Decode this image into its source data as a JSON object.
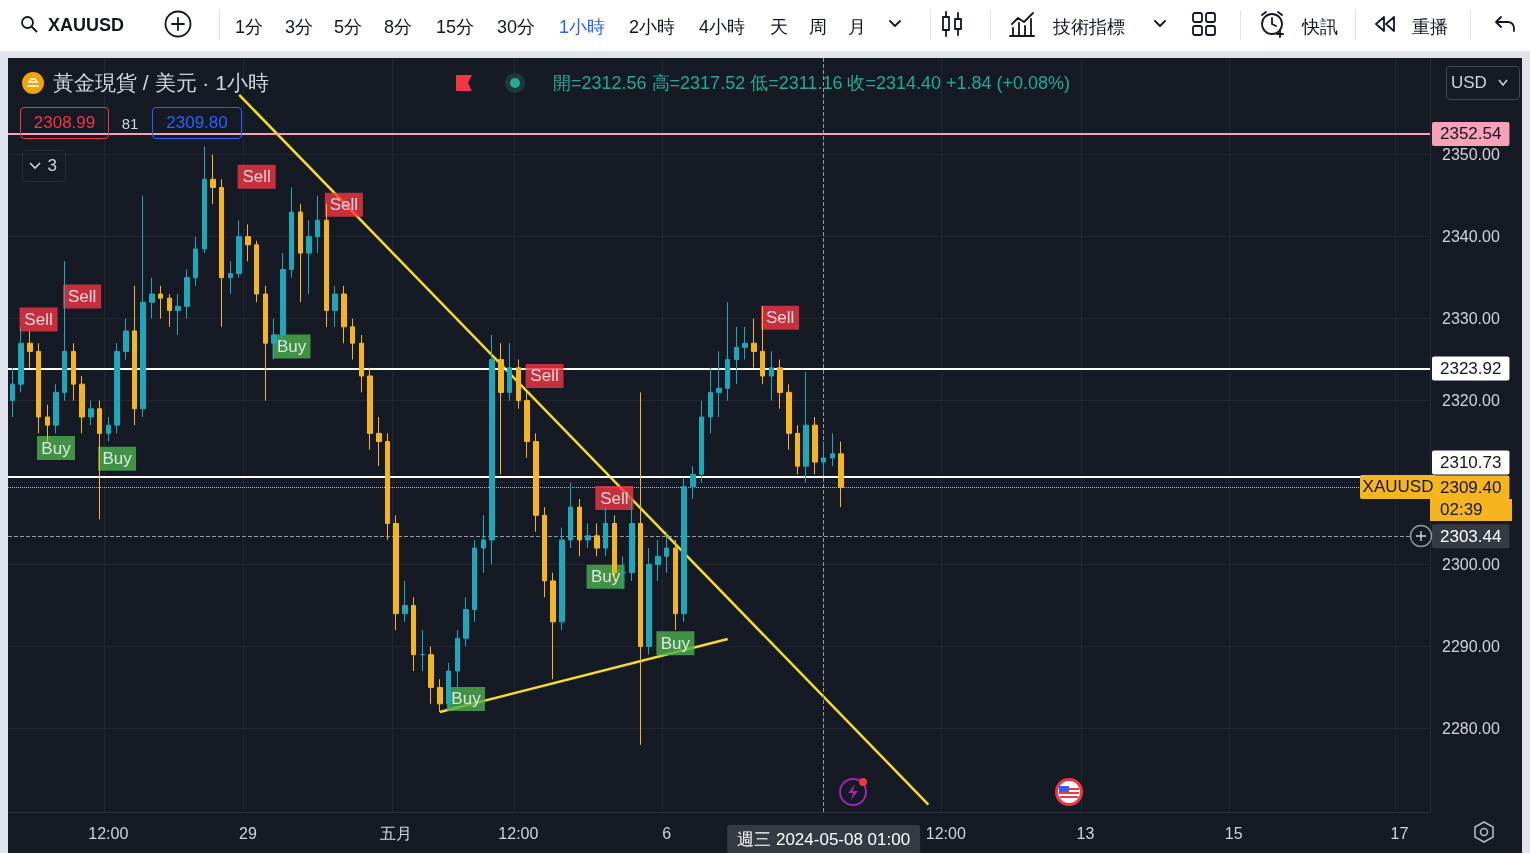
{
  "chart_data": {
    "type": "candlestick",
    "title": "黃金現貨 / 美元 · 1小時",
    "subtitle": "開=2312.56 高=2317.52 低=2311.16 收=2314.40 +1.84 (+0.08%)",
    "categories": [
      null,
      null,
      null,
      null,
      null,
      null,
      null,
      null,
      null,
      null,
      null,
      "12:00",
      null,
      null,
      null,
      null,
      null,
      null,
      null,
      null,
      null,
      null,
      null,
      null,
      null,
      null,
      null,
      "29",
      null,
      null,
      null,
      null,
      null,
      null,
      null,
      null,
      null,
      null,
      null,
      null,
      null,
      null,
      null,
      null,
      "五月",
      null,
      null,
      null,
      null,
      null,
      null,
      null,
      null,
      null,
      null,
      null,
      null,
      null,
      "12:00",
      null,
      null,
      null,
      null,
      null,
      null,
      null,
      null,
      null,
      null,
      null,
      null,
      null,
      null,
      null,
      null,
      "6",
      null,
      null,
      null,
      null,
      null,
      null,
      null,
      null,
      null,
      null,
      null,
      null,
      null,
      null,
      null,
      null,
      null,
      "週三 2024-05-08 01:00",
      null,
      null,
      null,
      null,
      null,
      null,
      null,
      null,
      null,
      null,
      null,
      null,
      null,
      "12:00",
      null,
      null,
      null,
      null,
      null,
      null,
      null,
      null,
      null,
      null,
      null,
      null,
      null,
      null,
      null,
      "13",
      null,
      null,
      null,
      null,
      null,
      null,
      null,
      null,
      null,
      null,
      null,
      null,
      null,
      null,
      null,
      null,
      "15",
      null,
      null,
      null,
      null,
      null,
      null,
      null,
      null,
      null,
      null,
      null,
      null,
      null,
      null,
      null,
      null,
      null,
      null,
      "17",
      null,
      null,
      null
    ],
    "ohlc": [
      [
        2320,
        2324,
        2318,
        2322
      ],
      [
        2322,
        2329,
        2321,
        2327
      ],
      [
        2327,
        2328.5,
        2324,
        2326
      ],
      [
        2326,
        2327,
        2316,
        2318
      ],
      [
        2318,
        2319.5,
        2315,
        2317
      ],
      [
        2317,
        2322,
        2316,
        2321
      ],
      [
        2321,
        2337,
        2320,
        2326
      ],
      [
        2326,
        2327,
        2320,
        2322
      ],
      [
        2322,
        2323,
        2316,
        2318
      ],
      [
        2318,
        2320,
        2317,
        2319
      ],
      [
        2319,
        2320,
        2305.5,
        2316
      ],
      [
        2316,
        2318,
        2315,
        2317
      ],
      [
        2317,
        2327,
        2316,
        2326
      ],
      [
        2326,
        2330,
        2325,
        2328.5
      ],
      [
        2328.5,
        2334,
        2317,
        2319
      ],
      [
        2319,
        2345,
        2318,
        2332
      ],
      [
        2332,
        2335,
        2330,
        2333
      ],
      [
        2333,
        2334,
        2330,
        2332.5
      ],
      [
        2332.5,
        2333,
        2329,
        2331
      ],
      [
        2331,
        2333,
        2328,
        2331.5
      ],
      [
        2331.5,
        2336,
        2330,
        2335
      ],
      [
        2335,
        2340,
        2334,
        2338.5
      ],
      [
        2338.5,
        2351,
        2338,
        2347
      ],
      [
        2347,
        2350,
        2344,
        2346
      ],
      [
        2346,
        2347,
        2329,
        2335
      ],
      [
        2335,
        2337,
        2333,
        2335.5
      ],
      [
        2335.5,
        2342,
        2335,
        2340
      ],
      [
        2340,
        2341.5,
        2337,
        2339
      ],
      [
        2339,
        2339.5,
        2332,
        2333
      ],
      [
        2333,
        2334,
        2320,
        2327
      ],
      [
        2327,
        2330,
        2325,
        2328
      ],
      [
        2328,
        2338,
        2327,
        2336
      ],
      [
        2336,
        2346,
        2335,
        2343
      ],
      [
        2343,
        2344,
        2332,
        2338
      ],
      [
        2338,
        2342,
        2333,
        2340
      ],
      [
        2340,
        2345,
        2338,
        2342
      ],
      [
        2342,
        2344,
        2329,
        2331
      ],
      [
        2331,
        2334,
        2329,
        2333
      ],
      [
        2333,
        2334,
        2327,
        2329
      ],
      [
        2329,
        2330,
        2325,
        2327
      ],
      [
        2327,
        2328,
        2321,
        2323
      ],
      [
        2323,
        2324,
        2314,
        2316
      ],
      [
        2316,
        2318,
        2312,
        2315
      ],
      [
        2315,
        2316,
        2303,
        2305
      ],
      [
        2305,
        2306,
        2292,
        2294
      ],
      [
        2294,
        2298,
        2293,
        2295
      ],
      [
        2295,
        2296,
        2287,
        2289
      ],
      [
        2289,
        2292,
        2287,
        2289
      ],
      [
        2289,
        2290,
        2283,
        2285
      ],
      [
        2285,
        2286,
        2282,
        2283
      ],
      [
        2283,
        2288,
        2282.5,
        2287
      ],
      [
        2287,
        2292,
        2285,
        2291
      ],
      [
        2291,
        2296,
        2290,
        2294.5
      ],
      [
        2294.5,
        2303,
        2293,
        2302
      ],
      [
        2302,
        2306,
        2299,
        2303
      ],
      [
        2303,
        2328,
        2300,
        2325
      ],
      [
        2325,
        2327,
        2311,
        2321
      ],
      [
        2321,
        2327,
        2320,
        2324
      ],
      [
        2324,
        2325,
        2319,
        2320
      ],
      [
        2320,
        2321,
        2313,
        2315
      ],
      [
        2315,
        2316,
        2304,
        2306
      ],
      [
        2306,
        2307,
        2296,
        2298
      ],
      [
        2298,
        2299,
        2286,
        2293
      ],
      [
        2293,
        2304.5,
        2292,
        2303
      ],
      [
        2303,
        2310,
        2302,
        2307
      ],
      [
        2307,
        2308,
        2301,
        2303
      ],
      [
        2303,
        2305,
        2302,
        2303.5
      ],
      [
        2303.5,
        2305,
        2301,
        2302
      ],
      [
        2302,
        2307,
        2301,
        2305
      ],
      [
        2305,
        2306,
        2298,
        2299
      ],
      [
        2299,
        2301,
        2297,
        2299
      ],
      [
        2299,
        2308,
        2298,
        2305
      ],
      [
        2305,
        2321,
        2278,
        2290
      ],
      [
        2290,
        2302,
        2289,
        2300
      ],
      [
        2300,
        2303,
        2298,
        2301
      ],
      [
        2301,
        2304,
        2299,
        2302
      ],
      [
        2302,
        2303,
        2292,
        2294
      ],
      [
        2294,
        2310.5,
        2293,
        2309.5
      ],
      [
        2309.5,
        2312,
        2308,
        2311
      ],
      [
        2311,
        2320,
        2310,
        2318
      ],
      [
        2318,
        2324,
        2316,
        2321
      ],
      [
        2321,
        2326,
        2318,
        2321.5
      ],
      [
        2321.5,
        2332,
        2320,
        2325
      ],
      [
        2325,
        2329,
        2322,
        2326.5
      ],
      [
        2326.5,
        2329,
        2325,
        2327
      ],
      [
        2327,
        2330,
        2324,
        2326
      ],
      [
        2326,
        2331.5,
        2322,
        2323
      ],
      [
        2323,
        2326,
        2320,
        2324
      ],
      [
        2324,
        2325,
        2319,
        2321
      ],
      [
        2321,
        2322,
        2314,
        2316
      ],
      [
        2316,
        2317,
        2311,
        2312
      ],
      [
        2312,
        2323.5,
        2310,
        2317
      ],
      [
        2317,
        2318,
        2311,
        2312.5
      ],
      [
        2312.5,
        2315,
        2311,
        2313
      ],
      [
        2313,
        2316,
        2312,
        2313.5
      ],
      [
        2313.5,
        2315,
        2307,
        2309.4
      ],
      null,
      null,
      null,
      null,
      null,
      null,
      null,
      null,
      null,
      null,
      null,
      null,
      null,
      null,
      null,
      null,
      null,
      null,
      null,
      null,
      null,
      null,
      null,
      null,
      null,
      null,
      null,
      null,
      null,
      null,
      null,
      null,
      null,
      null,
      null,
      null,
      null,
      null,
      null,
      null,
      null,
      null,
      null,
      null,
      null,
      null,
      null,
      null,
      null,
      null,
      null,
      null,
      null,
      null,
      null,
      null,
      null,
      null,
      null,
      null,
      null,
      null,
      null,
      null,
      null,
      null,
      null
    ],
    "colors": [
      "#1ea7b8",
      "#1ea7b8",
      "#f5b51f",
      "#f5b51f",
      "#f5b51f",
      "#1ea7b8",
      "#1ea7b8",
      "#f5b51f",
      "#f5b51f",
      "#1ea7b8",
      "#f5b51f",
      "#1ea7b8",
      "#1ea7b8",
      "#1ea7b8",
      "#f5b51f",
      "#1ea7b8",
      "#1ea7b8",
      "#f5b51f",
      "#f5b51f",
      "#1ea7b8",
      "#1ea7b8",
      "#1ea7b8",
      "#1ea7b8",
      "#f5b51f",
      "#f5b51f",
      "#1ea7b8",
      "#1ea7b8",
      "#f5b51f",
      "#f5b51f",
      "#f5b51f",
      "#1ea7b8",
      "#1ea7b8",
      "#1ea7b8",
      "#f5b51f",
      "#1ea7b8",
      "#1ea7b8",
      "#f5b51f",
      "#1ea7b8",
      "#f5b51f",
      "#f5b51f",
      "#f5b51f",
      "#f5b51f",
      "#f5b51f",
      "#f5b51f",
      "#f5b51f",
      "#1ea7b8",
      "#f5b51f",
      "#1ea7b8",
      "#f5b51f",
      "#f5b51f",
      "#1ea7b8",
      "#1ea7b8",
      "#1ea7b8",
      "#1ea7b8",
      "#1ea7b8",
      "#1ea7b8",
      "#f5b51f",
      "#1ea7b8",
      "#f5b51f",
      "#f5b51f",
      "#f5b51f",
      "#f5b51f",
      "#f5b51f",
      "#1ea7b8",
      "#1ea7b8",
      "#f5b51f",
      "#1ea7b8",
      "#f5b51f",
      "#1ea7b8",
      "#f5b51f",
      "#1ea7b8",
      "#1ea7b8",
      "#f5b51f",
      "#1ea7b8",
      "#1ea7b8",
      "#1ea7b8",
      "#f5b51f",
      "#1ea7b8",
      "#1ea7b8",
      "#1ea7b8",
      "#1ea7b8",
      "#1ea7b8",
      "#1ea7b8",
      "#1ea7b8",
      "#1ea7b8",
      "#f5b51f",
      "#f5b51f",
      "#1ea7b8",
      "#f5b51f",
      "#f5b51f",
      "#f5b51f",
      "#1ea7b8",
      "#f5b51f",
      "#1ea7b8",
      "#1ea7b8",
      "#f5b51f",
      null,
      null,
      null,
      null,
      null,
      null,
      null,
      null,
      null,
      null,
      null,
      null,
      null,
      null,
      null,
      null,
      null,
      null,
      null,
      null,
      null,
      null,
      null,
      null,
      null,
      null,
      null,
      null,
      null,
      null,
      null,
      null,
      null,
      null,
      null,
      null,
      null,
      null,
      null,
      null,
      null,
      null,
      null,
      null,
      null,
      null,
      null,
      null,
      null,
      null,
      null,
      null,
      null,
      null,
      null,
      null,
      null,
      null,
      null,
      null,
      null,
      null,
      null,
      null,
      null,
      null,
      null
    ],
    "series": [
      {
        "type": "line",
        "color": "#f2dd2c",
        "values": [
          null,
          null,
          null,
          null,
          null,
          null,
          null,
          null,
          null,
          null,
          null,
          null,
          null,
          null,
          null,
          null,
          null,
          null,
          null,
          null,
          null,
          null,
          null,
          null,
          null,
          null,
          2357.3,
          null,
          null,
          null,
          null,
          null,
          null,
          null,
          null,
          null,
          null,
          null,
          null,
          null,
          null,
          null,
          null,
          null,
          null,
          null,
          null,
          null,
          null,
          null,
          null,
          null,
          null,
          null,
          null,
          null,
          null,
          null,
          null,
          null,
          null,
          null,
          null,
          null,
          null,
          null,
          null,
          null,
          null,
          null,
          null,
          null,
          null,
          null,
          null,
          null,
          null,
          null,
          null,
          null,
          null,
          null,
          null,
          null,
          null,
          null,
          null,
          null,
          null,
          null,
          null,
          null,
          null,
          null,
          null,
          null,
          null,
          null,
          null,
          null,
          null,
          null,
          null,
          null,
          null,
          2270.7,
          null,
          null,
          null,
          null,
          null,
          null,
          null,
          null,
          null,
          null,
          null,
          null,
          null,
          null,
          null,
          null,
          null,
          null,
          null,
          null,
          null,
          null,
          null,
          null,
          null,
          null,
          null,
          null,
          null,
          null,
          null,
          null,
          null,
          null,
          null,
          null,
          null,
          null,
          null,
          null,
          null,
          null,
          null,
          null,
          null,
          null,
          null,
          null,
          null,
          null,
          null,
          null,
          null,
          null,
          null,
          null,
          null
        ]
      },
      {
        "type": "line",
        "color": "#f2dd2c",
        "values": [
          null,
          null,
          null,
          null,
          null,
          null,
          null,
          null,
          null,
          null,
          null,
          null,
          null,
          null,
          null,
          null,
          null,
          null,
          null,
          null,
          null,
          null,
          null,
          null,
          null,
          null,
          null,
          null,
          null,
          null,
          null,
          null,
          null,
          null,
          null,
          null,
          null,
          null,
          null,
          null,
          null,
          null,
          null,
          null,
          null,
          null,
          null,
          null,
          null,
          2282,
          null,
          null,
          null,
          null,
          null,
          null,
          null,
          null,
          null,
          null,
          null,
          null,
          null,
          null,
          null,
          null,
          null,
          null,
          null,
          null,
          null,
          null,
          null,
          null,
          null,
          null,
          null,
          null,
          null,
          null,
          null,
          null,
          2290.9,
          null,
          null,
          null,
          null,
          null,
          null,
          null,
          null,
          null,
          null,
          null,
          null,
          null,
          null,
          null,
          null,
          null,
          null,
          null,
          null,
          null,
          null,
          null,
          null,
          null,
          null,
          null,
          null,
          null,
          null,
          null,
          null,
          null,
          null,
          null,
          null,
          null,
          null,
          null,
          null,
          null,
          null,
          null,
          null,
          null,
          null,
          null,
          null,
          null,
          null,
          null,
          null,
          null,
          null,
          null,
          null,
          null,
          null,
          null,
          null,
          null,
          null,
          null,
          null,
          null,
          null,
          null,
          null,
          null,
          null,
          null,
          null,
          null,
          null,
          null,
          null,
          null,
          null,
          null,
          null
        ]
      },
      {
        "type": "scatter",
        "marker": "square",
        "color": "#f23645",
        "values": [
          null,
          null,
          null,
          2329.9,
          null,
          null,
          null,
          null,
          2332.7,
          null,
          null,
          null,
          null,
          null,
          null,
          null,
          null,
          null,
          null,
          null,
          null,
          null,
          null,
          null,
          null,
          null,
          null,
          null,
          2347.3,
          null,
          null,
          null,
          null,
          null,
          null,
          null,
          null,
          null,
          2343.9,
          null,
          null,
          null,
          null,
          null,
          null,
          null,
          null,
          null,
          null,
          null,
          null,
          null,
          null,
          null,
          null,
          null,
          null,
          null,
          null,
          null,
          null,
          2323,
          null,
          null,
          null,
          null,
          null,
          null,
          null,
          2308.1,
          null,
          null,
          null,
          null,
          null,
          null,
          null,
          null,
          null,
          null,
          null,
          null,
          null,
          null,
          null,
          null,
          null,
          null,
          2330.1,
          null,
          null,
          null,
          null,
          null,
          null,
          null,
          null,
          null,
          null,
          null,
          null,
          null,
          null,
          null,
          null,
          null,
          null,
          null,
          null,
          null,
          null,
          null,
          null,
          null,
          null,
          null,
          null,
          null,
          null,
          null,
          null,
          null,
          null,
          null,
          null,
          null,
          null,
          null,
          null,
          null,
          null,
          null,
          null,
          null,
          null,
          null,
          null,
          null,
          null,
          null,
          null,
          null,
          null,
          null,
          null,
          null,
          null,
          null,
          null,
          null,
          null,
          null,
          null,
          null,
          null,
          null,
          null,
          null,
          null,
          null,
          null,
          null,
          null
        ],
        "value_labels": [
          null,
          null,
          null,
          "Sell",
          null,
          null,
          null,
          null,
          "Sell",
          null,
          null,
          null,
          null,
          null,
          null,
          null,
          null,
          null,
          null,
          null,
          null,
          null,
          null,
          null,
          null,
          null,
          null,
          null,
          "Sell",
          null,
          null,
          null,
          null,
          null,
          null,
          null,
          null,
          null,
          "Sell",
          null,
          null,
          null,
          null,
          null,
          null,
          null,
          null,
          null,
          null,
          null,
          null,
          null,
          null,
          null,
          null,
          null,
          null,
          null,
          null,
          null,
          null,
          "Sell",
          null,
          null,
          null,
          null,
          null,
          null,
          null,
          "Sell",
          null,
          null,
          null,
          null,
          null,
          null,
          null,
          null,
          null,
          null,
          null,
          null,
          null,
          null,
          null,
          null,
          null,
          null,
          "Sell",
          null,
          null,
          null,
          null,
          null,
          null,
          null,
          null,
          null,
          null,
          null,
          null,
          null,
          null,
          null,
          null,
          null,
          null,
          null,
          null,
          null,
          null,
          null,
          null,
          null,
          null,
          null,
          null,
          null,
          null,
          null,
          null,
          null,
          null,
          null,
          null,
          null,
          null,
          null,
          null,
          null,
          null,
          null,
          null,
          null,
          null,
          null,
          null,
          null,
          null,
          null,
          null,
          null,
          null,
          null,
          null,
          null,
          null,
          null,
          null,
          null,
          null,
          null,
          null,
          null,
          null,
          null,
          null,
          null,
          null,
          null,
          null,
          null,
          null
        ]
      },
      {
        "type": "scatter",
        "marker": "square",
        "color": "#4caf50",
        "values": [
          null,
          null,
          null,
          null,
          null,
          2314.2,
          null,
          null,
          null,
          null,
          null,
          null,
          2312.9,
          null,
          null,
          null,
          null,
          null,
          null,
          null,
          null,
          null,
          null,
          null,
          null,
          null,
          null,
          null,
          null,
          null,
          null,
          null,
          2326.6,
          null,
          null,
          null,
          null,
          null,
          null,
          null,
          null,
          null,
          null,
          null,
          null,
          null,
          null,
          null,
          null,
          null,
          null,
          null,
          2283.6,
          null,
          null,
          null,
          null,
          null,
          null,
          null,
          null,
          null,
          null,
          null,
          null,
          null,
          null,
          null,
          2298.5,
          null,
          null,
          null,
          null,
          null,
          null,
          null,
          2290.4,
          null,
          null,
          null,
          null,
          null,
          null,
          null,
          null,
          null,
          null,
          null,
          null,
          null,
          null,
          null,
          null,
          null,
          null,
          null,
          null,
          null,
          null,
          null,
          null,
          null,
          null,
          null,
          null,
          null,
          null,
          null,
          null,
          null,
          null,
          null,
          null,
          null,
          null,
          null,
          null,
          null,
          null,
          null,
          null,
          null,
          null,
          null,
          null,
          null,
          null,
          null,
          null,
          null,
          null,
          null,
          null,
          null,
          null,
          null,
          null,
          null,
          null,
          null,
          null,
          null,
          null,
          null,
          null,
          null,
          null,
          null,
          null,
          null,
          null,
          null,
          null,
          null,
          null,
          null,
          null,
          null,
          null,
          null,
          null,
          null,
          null
        ],
        "value_labels": [
          null,
          null,
          null,
          null,
          null,
          "Buy",
          null,
          null,
          null,
          null,
          null,
          null,
          "Buy",
          null,
          null,
          null,
          null,
          null,
          null,
          null,
          null,
          null,
          null,
          null,
          null,
          null,
          null,
          null,
          null,
          null,
          null,
          null,
          "Buy",
          null,
          null,
          null,
          null,
          null,
          null,
          null,
          null,
          null,
          null,
          null,
          null,
          null,
          null,
          null,
          null,
          null,
          null,
          null,
          "Buy",
          null,
          null,
          null,
          null,
          null,
          null,
          null,
          null,
          null,
          null,
          null,
          null,
          null,
          null,
          null,
          "Buy",
          null,
          null,
          null,
          null,
          null,
          null,
          null,
          "Buy",
          null,
          null,
          null,
          null,
          null,
          null,
          null,
          null,
          null,
          null,
          null,
          null,
          null,
          null,
          null,
          null,
          null,
          null,
          null,
          null,
          null,
          null,
          null,
          null,
          null,
          null,
          null,
          null,
          null,
          null,
          null,
          null,
          null,
          null,
          null,
          null,
          null,
          null,
          null,
          null,
          null,
          null,
          null,
          null,
          null,
          null,
          null,
          null,
          null,
          null,
          null,
          null,
          null,
          null,
          null,
          null,
          null,
          null,
          null,
          null,
          null,
          null,
          null,
          null,
          null,
          null,
          null,
          null,
          null,
          null,
          null,
          null,
          null,
          null,
          null,
          null,
          null,
          null,
          null,
          null,
          null,
          null,
          null,
          null,
          null,
          null
        ]
      }
    ],
    "marker": "none",
    "ylim": [
      2269.8,
      2361.8
    ],
    "yticks": [
      {
        "value": 2280,
        "label": "2280.00"
      },
      {
        "value": 2290,
        "label": "2290.00"
      },
      {
        "value": 2300,
        "label": "2300.00"
      },
      {
        "value": 2310,
        "label": null
      },
      {
        "value": 2320,
        "label": "2320.00"
      },
      {
        "value": 2330,
        "label": "2330.00"
      },
      {
        "value": 2340,
        "label": "2340.00"
      },
      {
        "value": 2350,
        "label": "2350.00"
      }
    ],
    "grid": true,
    "ref_lines": [
      {
        "axis": "y",
        "value": 2352.54,
        "label": "2352.54",
        "color": "#f7a1b8",
        "line_style": "solid"
      },
      {
        "axis": "y",
        "value": 2323.92,
        "label": "2323.92",
        "color": "#ffffff",
        "line_style": "solid"
      },
      {
        "axis": "y",
        "value": 2310.73,
        "label": "2310.73",
        "color": "#ffffff",
        "line_style": "solid"
      },
      {
        "axis": "y",
        "value": 2309.4,
        "label": "2309.40",
        "color": "#f5b51f",
        "line_style": "dotted"
      },
      {
        "axis": "y",
        "value": 2303.44,
        "label": "2303.44",
        "color": "#9598a1",
        "line_style": "dashed"
      },
      {
        "axis": "x",
        "value": "週三 2024-05-08 01:00",
        "color": "#9598a1",
        "line_style": "dashed"
      }
    ],
    "annotations": [
      "XAUUSD",
      "1分",
      "3分",
      "5分",
      "8分",
      "15分",
      "30分",
      "1小時",
      "2小時",
      "4小時",
      "天",
      "周",
      "月",
      "技術指標",
      "快訊",
      "重播",
      "USD",
      "2308.99",
      "81",
      "2309.80",
      "3",
      "XAUUSD",
      "02:39"
    ]
  }
}
